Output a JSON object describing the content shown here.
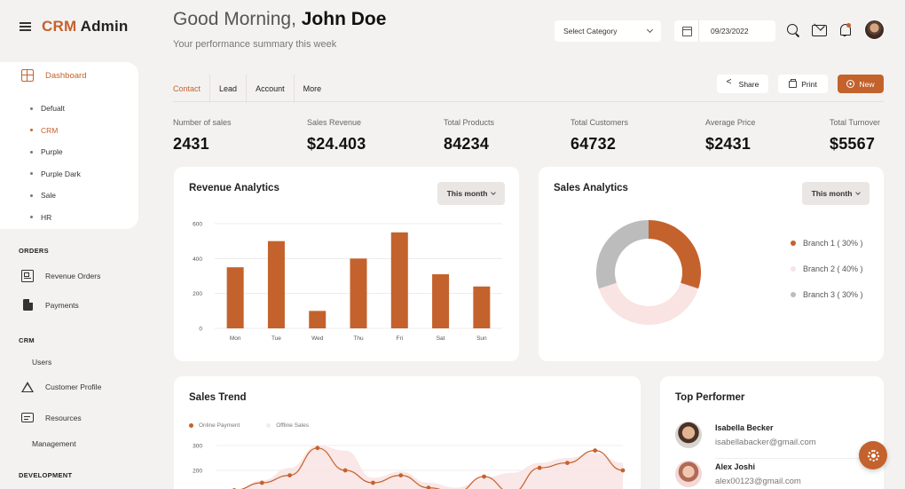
{
  "brand": {
    "accent": "CRM",
    "rest": " Admin"
  },
  "sidebar": {
    "dashboard_label": "Dashboard",
    "dashboard_items": [
      {
        "label": "Defualt",
        "active": false
      },
      {
        "label": "CRM",
        "active": true
      },
      {
        "label": "Purple",
        "active": false
      },
      {
        "label": "Purple Dark",
        "active": false
      },
      {
        "label": "Sale",
        "active": false
      },
      {
        "label": "HR",
        "active": false
      }
    ],
    "orders_label": "ORDERS",
    "revenue_orders": "Revenue Orders",
    "payments": "Payments",
    "crm_label": "CRM",
    "users": "Users",
    "customer_profile": "Customer Profile",
    "resources": "Resources",
    "management": "Management",
    "development_label": "DEVELOPMENT"
  },
  "header": {
    "greeting": "Good Morning, ",
    "user_name": "John Doe",
    "subtitle": "Your performance summary this week",
    "select_category": "Select Category",
    "date": "09/23/2022"
  },
  "tabs": [
    {
      "label": "Contact",
      "active": true
    },
    {
      "label": "Lead",
      "active": false
    },
    {
      "label": "Account",
      "active": false
    },
    {
      "label": "More",
      "active": false
    }
  ],
  "actions": {
    "share": "Share",
    "print": "Print",
    "new": "New"
  },
  "stats": [
    {
      "label": "Number of sales",
      "value": "2431"
    },
    {
      "label": "Sales Revenue",
      "value": "$24.403"
    },
    {
      "label": "Total Products",
      "value": "84234"
    },
    {
      "label": "Total Customers",
      "value": "64732"
    },
    {
      "label": "Average Price",
      "value": "$2431"
    },
    {
      "label": "Total Turnover",
      "value": "$5567"
    }
  ],
  "revenue_card": {
    "title": "Revenue Analytics",
    "period": "This month"
  },
  "sales_card": {
    "title": "Sales Analytics",
    "period": "This month"
  },
  "trend_card": {
    "title": "Sales Trend",
    "legend": [
      "Online Payment",
      "Offline Sales"
    ]
  },
  "top_performer": {
    "title": "Top Performer",
    "people": [
      {
        "name": "Isabella Becker",
        "email": "isabellabacker@gmail.com"
      },
      {
        "name": "Alex Joshi",
        "email": "alex00123@gmail.com"
      }
    ]
  },
  "colors": {
    "accent": "#c4622d",
    "light_pink": "#f9e3e3",
    "gray": "#bcbcbc"
  },
  "chart_data": [
    {
      "type": "bar",
      "title": "Revenue Analytics",
      "categories": [
        "Mon",
        "Tue",
        "Wed",
        "Thu",
        "Fri",
        "Sat",
        "Sun"
      ],
      "values": [
        350,
        500,
        100,
        400,
        550,
        310,
        240
      ],
      "yticks": [
        0,
        200,
        400,
        600
      ],
      "ylim": [
        0,
        600
      ],
      "grid": true
    },
    {
      "type": "pie",
      "title": "Sales Analytics",
      "labels": [
        "Branch 1 ( 30% )",
        "Branch 2 ( 40% )",
        "Branch 3 ( 30% )"
      ],
      "values": [
        30,
        40,
        30
      ],
      "colors": [
        "#c4622d",
        "#f9e3e3",
        "#bcbcbc"
      ]
    },
    {
      "type": "line",
      "title": "Sales Trend",
      "yticks": [
        200,
        300
      ],
      "series": [
        {
          "name": "Online Payment",
          "values": [
            120,
            150,
            180,
            290,
            200,
            150,
            180,
            130,
            110,
            175,
            110,
            210,
            230,
            280,
            200
          ]
        },
        {
          "name": "Offline Sales",
          "values": [
            120,
            160,
            210,
            300,
            280,
            170,
            195,
            150,
            130,
            170,
            190,
            230,
            250,
            270,
            230
          ]
        }
      ]
    }
  ]
}
